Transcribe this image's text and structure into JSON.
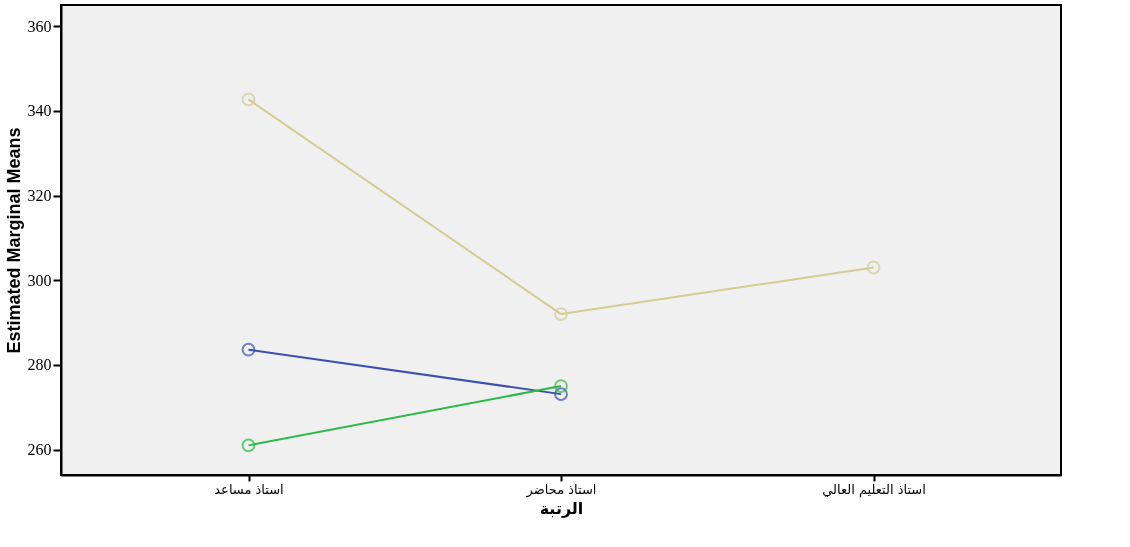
{
  "chart_data": {
    "type": "line",
    "xlabel": "الرتبة",
    "ylabel": "Estimated Marginal Means",
    "categories": [
      "استاذ مساعد",
      "استاذ محاضر",
      "استاذ التعليم العالي"
    ],
    "series": [
      {
        "color": "#d3cc94",
        "values": [
          342.7,
          292,
          303
        ]
      },
      {
        "color": "#3a4fb0",
        "values": [
          283.6,
          273.1,
          null
        ]
      },
      {
        "color": "#2db84a",
        "values": [
          261,
          275,
          null
        ]
      }
    ],
    "ylim": [
      254,
      365
    ],
    "yticks": [
      260,
      280,
      300,
      320,
      340,
      360
    ],
    "marker": "circle",
    "line_style": "solid",
    "grid": false,
    "legend": false
  }
}
